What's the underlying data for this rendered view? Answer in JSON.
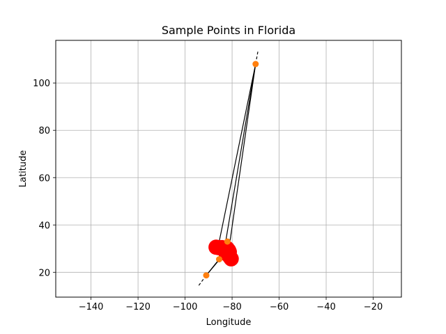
{
  "chart_data": {
    "type": "scatter",
    "title": "Sample Points in Florida",
    "xlabel": "Longitude",
    "ylabel": "Latitude",
    "xlim": [
      -155,
      -8
    ],
    "ylim": [
      9.5,
      118
    ],
    "xticks": [
      -140,
      -120,
      -100,
      -80,
      -60,
      -40,
      -20
    ],
    "yticks": [
      20,
      40,
      60,
      80,
      100
    ],
    "grid": true,
    "series": [
      {
        "kind": "points",
        "color": "#ff0000",
        "marker": "large-circle",
        "points": [
          {
            "x": -86.8,
            "y": 30.6
          },
          {
            "x": -85.6,
            "y": 30.4
          },
          {
            "x": -84.3,
            "y": 30.4
          },
          {
            "x": -83.1,
            "y": 29.8
          },
          {
            "x": -82.2,
            "y": 30.1
          },
          {
            "x": -81.5,
            "y": 29.3
          },
          {
            "x": -82.6,
            "y": 28.1
          },
          {
            "x": -81.8,
            "y": 27.4
          },
          {
            "x": -80.9,
            "y": 26.4
          },
          {
            "x": -80.4,
            "y": 25.7
          },
          {
            "x": -81.2,
            "y": 28.6
          }
        ]
      },
      {
        "kind": "points",
        "color": "#ff7f0e",
        "marker": "small-circle",
        "points": [
          {
            "x": -70.0,
            "y": 108.0
          },
          {
            "x": -91.0,
            "y": 18.7
          },
          {
            "x": -85.5,
            "y": 25.5
          },
          {
            "x": -82.0,
            "y": 33.0
          }
        ]
      },
      {
        "kind": "lines",
        "color": "#000000",
        "style": "solid",
        "segments": [
          {
            "from": {
              "x": -70.0,
              "y": 108.0
            },
            "to": {
              "x": -86.0,
              "y": 30.5
            }
          },
          {
            "from": {
              "x": -70.0,
              "y": 108.0
            },
            "to": {
              "x": -83.5,
              "y": 28.5
            }
          },
          {
            "from": {
              "x": -70.0,
              "y": 108.0
            },
            "to": {
              "x": -81.5,
              "y": 29.0
            }
          },
          {
            "from": {
              "x": -91.0,
              "y": 18.7
            },
            "to": {
              "x": -85.5,
              "y": 25.5
            }
          },
          {
            "from": {
              "x": -91.0,
              "y": 18.7
            },
            "to": {
              "x": -84.0,
              "y": 27.0
            }
          },
          {
            "from": {
              "x": -83.0,
              "y": 27.5
            },
            "to": {
              "x": -79.0,
              "y": 27.8
            }
          }
        ]
      },
      {
        "kind": "lines",
        "color": "#000000",
        "style": "dashed",
        "segments": [
          {
            "from": {
              "x": -70.0,
              "y": 108.0
            },
            "to": {
              "x": -69.0,
              "y": 113.5
            }
          },
          {
            "from": {
              "x": -91.0,
              "y": 18.7
            },
            "to": {
              "x": -94.5,
              "y": 14.0
            }
          },
          {
            "from": {
              "x": -82.0,
              "y": 31.0
            },
            "to": {
              "x": -79.5,
              "y": 32.0
            }
          }
        ]
      }
    ]
  }
}
